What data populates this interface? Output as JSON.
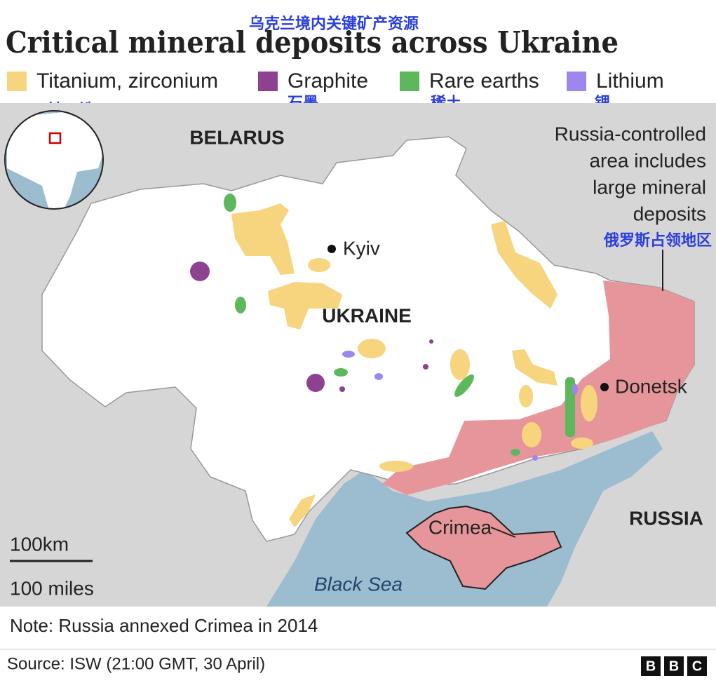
{
  "header": {
    "title_zh": "乌克兰境内关键矿产资源",
    "title": "Critical mineral deposits across Ukraine"
  },
  "legend": [
    {
      "label": "Titanium, zirconium",
      "label_zh": "钛、锆",
      "color": "#f7d47e"
    },
    {
      "label": "Graphite",
      "label_zh": "石墨",
      "color": "#8c4291"
    },
    {
      "label": "Rare earths",
      "label_zh": "稀土",
      "color": "#5cb85a"
    },
    {
      "label": "Lithium",
      "label_zh": "锂",
      "color": "#9d86ee"
    }
  ],
  "map": {
    "labels": {
      "belarus": "BELARUS",
      "kyiv": "Kyiv",
      "ukraine": "UKRAINE",
      "donetsk": "Donetsk",
      "russia": "RUSSIA",
      "crimea": "Crimea",
      "black_sea": "Black Sea"
    },
    "annotation": {
      "lines": [
        "Russia-controlled",
        "area includes",
        "large mineral",
        "deposits"
      ],
      "label_zh": "俄罗斯占领地区"
    },
    "scale": {
      "km": "100km",
      "miles": "100 miles"
    }
  },
  "footer": {
    "note": "Note: Russia annexed Crimea in 2014",
    "source": "Source: ISW (21:00 GMT, 30 April)",
    "logo": [
      "B",
      "B",
      "C"
    ]
  }
}
